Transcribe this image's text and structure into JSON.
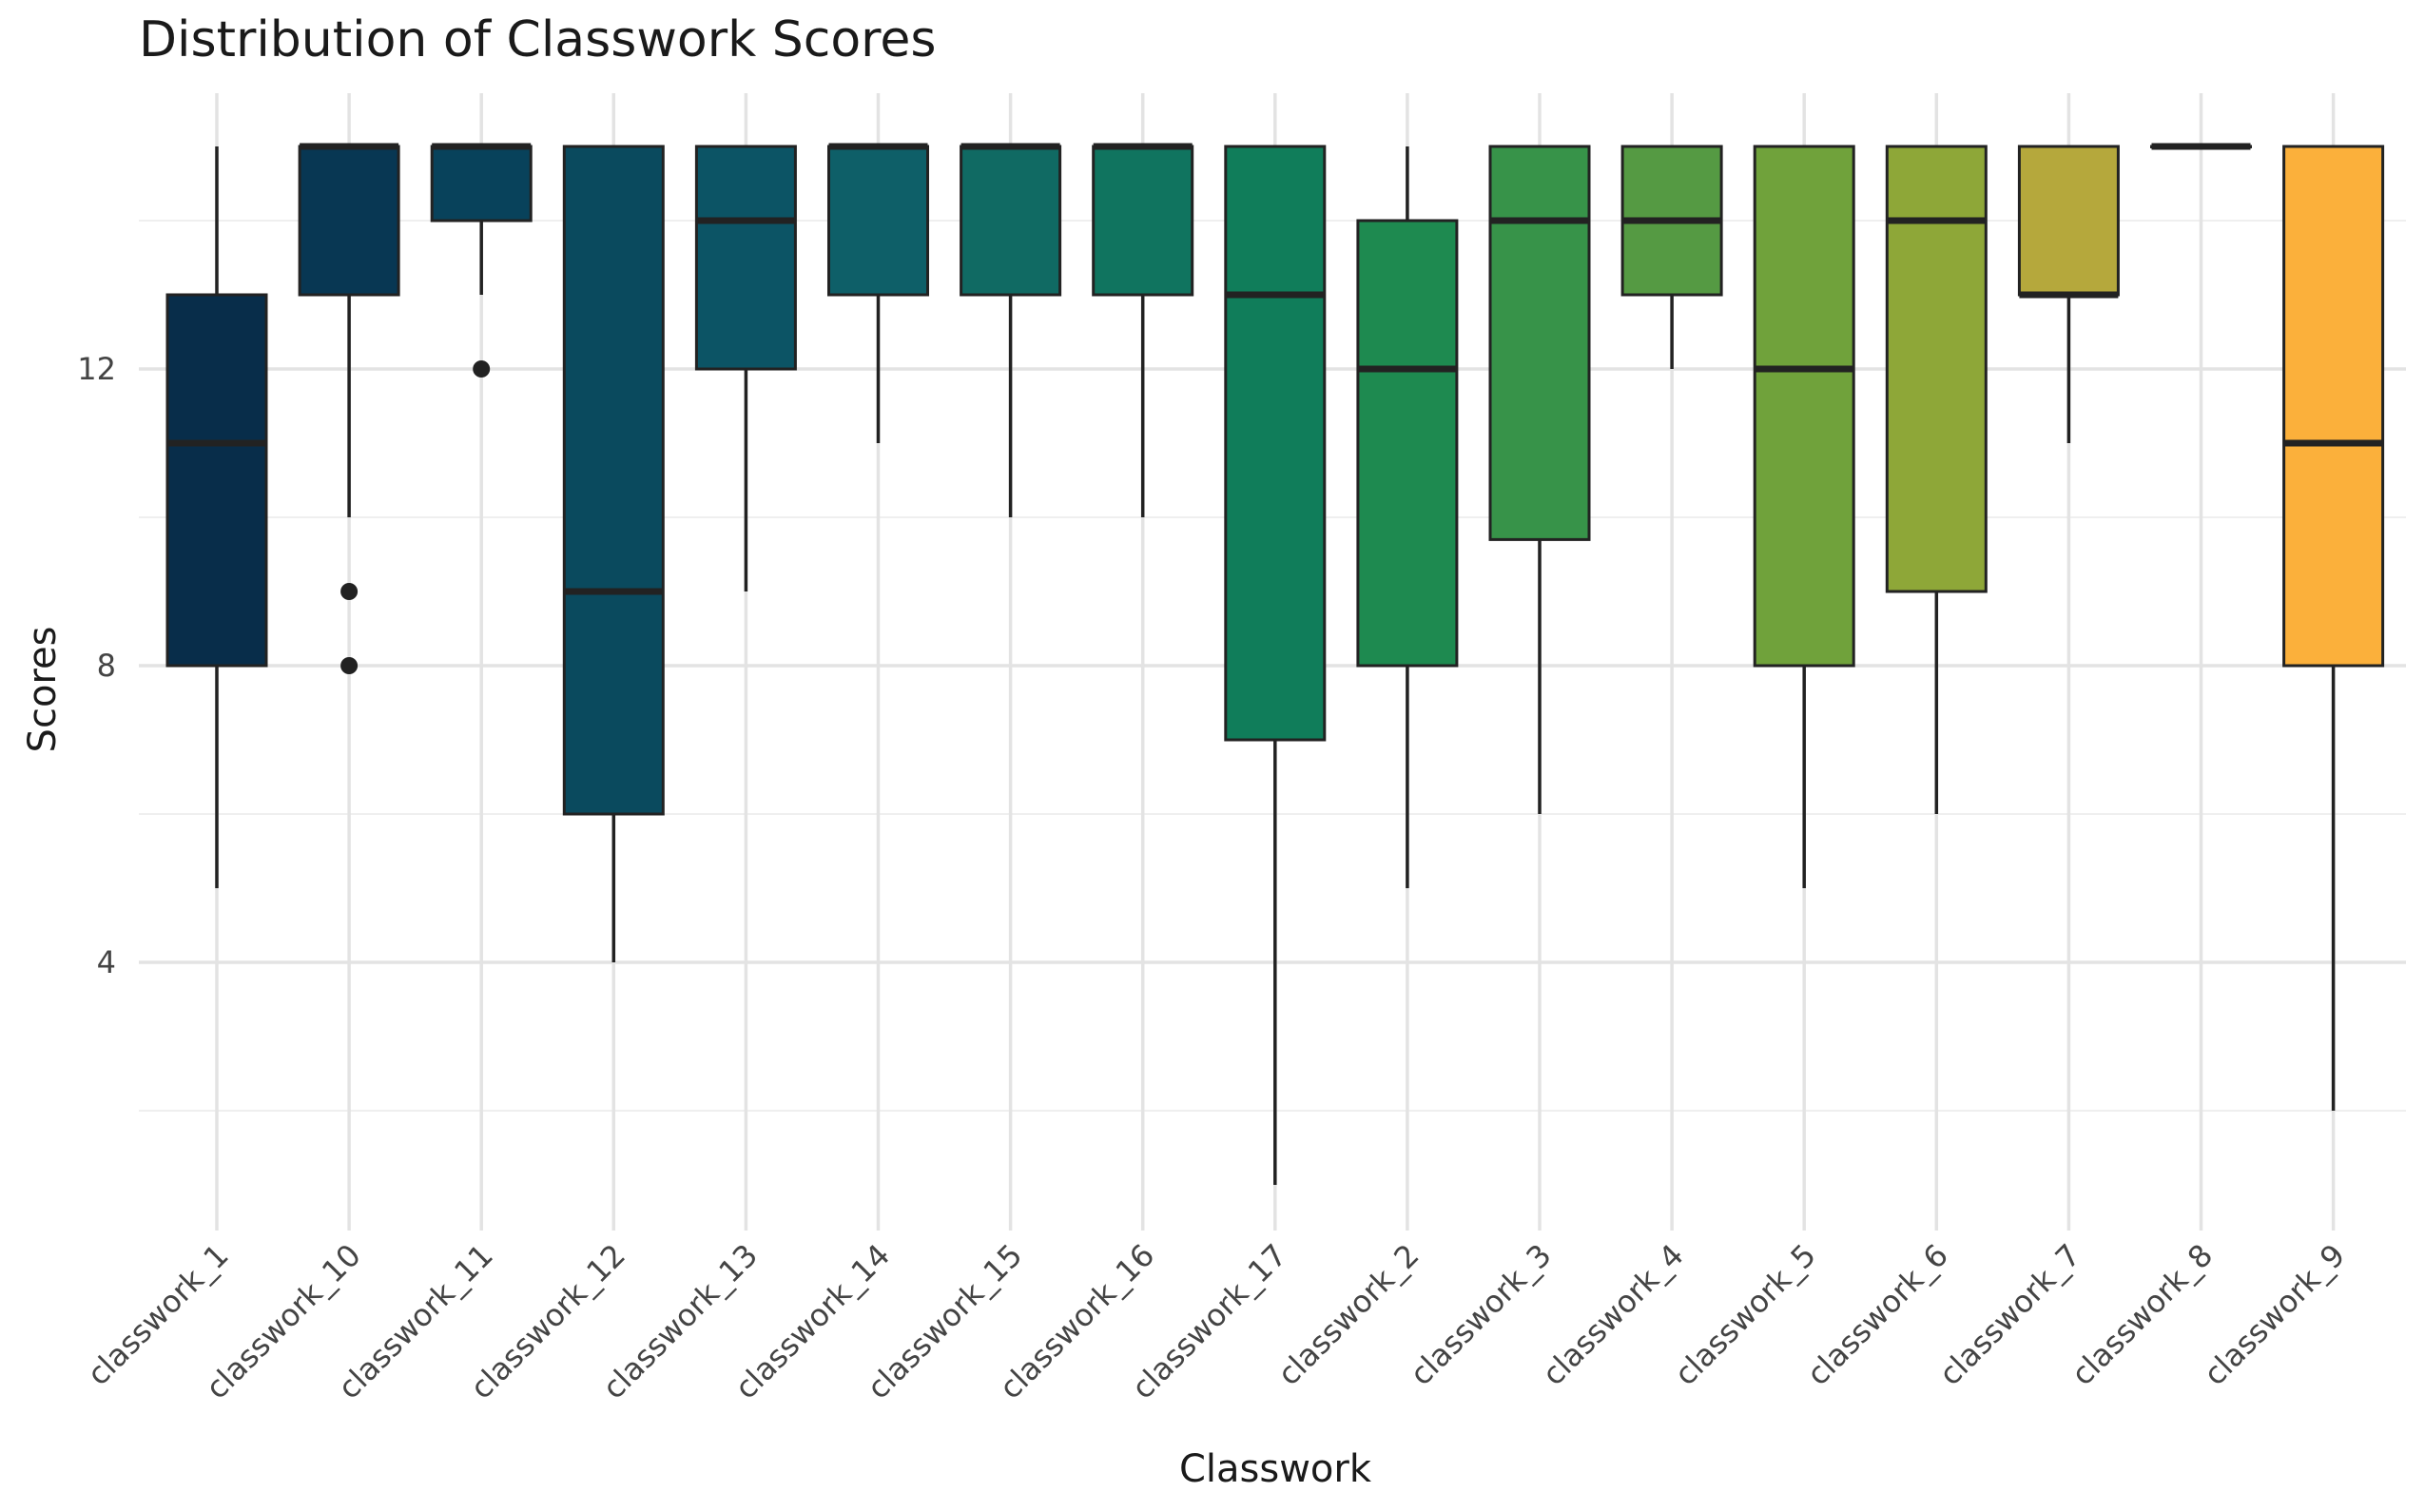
{
  "chart_data": {
    "type": "boxplot",
    "title": "Distribution of Classwork Scores",
    "xlabel": "Classwork",
    "ylabel": "Scores",
    "ylim": [
      0.5,
      15.8
    ],
    "y_ticks": [
      4,
      8,
      12
    ],
    "grid": true,
    "legend": "none",
    "categories": [
      "classwork_1",
      "classwork_10",
      "classwork_11",
      "classwork_12",
      "classwork_13",
      "classwork_14",
      "classwork_15",
      "classwork_16",
      "classwork_17",
      "classwork_2",
      "classwork_3",
      "classwork_4",
      "classwork_5",
      "classwork_6",
      "classwork_7",
      "classwork_8",
      "classwork_9"
    ],
    "boxes": [
      {
        "category": "classwork_1",
        "whisker_low": 5,
        "q1": 8,
        "median": 11,
        "q3": 13,
        "whisker_high": 15,
        "outliers": [],
        "color": "#082d4a"
      },
      {
        "category": "classwork_10",
        "whisker_low": 10,
        "q1": 13,
        "median": 15,
        "q3": 15,
        "whisker_high": 15,
        "outliers": [
          9,
          8
        ],
        "color": "#083753"
      },
      {
        "category": "classwork_11",
        "whisker_low": 13,
        "q1": 14,
        "median": 15,
        "q3": 15,
        "whisker_high": 15,
        "outliers": [
          12
        ],
        "color": "#08425b"
      },
      {
        "category": "classwork_12",
        "whisker_low": 4,
        "q1": 6,
        "median": 9,
        "q3": 15,
        "whisker_high": 15,
        "outliers": [],
        "color": "#0a4a5e"
      },
      {
        "category": "classwork_13",
        "whisker_low": 9,
        "q1": 12,
        "median": 14,
        "q3": 15,
        "whisker_high": 15,
        "outliers": [],
        "color": "#0c5465"
      },
      {
        "category": "classwork_14",
        "whisker_low": 11,
        "q1": 13,
        "median": 15,
        "q3": 15,
        "whisker_high": 15,
        "outliers": [],
        "color": "#0e5f68"
      },
      {
        "category": "classwork_15",
        "whisker_low": 10,
        "q1": 13,
        "median": 15,
        "q3": 15,
        "whisker_high": 15,
        "outliers": [],
        "color": "#106a63"
      },
      {
        "category": "classwork_16",
        "whisker_low": 10,
        "q1": 13,
        "median": 15,
        "q3": 15,
        "whisker_high": 15,
        "outliers": [],
        "color": "#10745f"
      },
      {
        "category": "classwork_17",
        "whisker_low": 1,
        "q1": 7,
        "median": 13,
        "q3": 15,
        "whisker_high": 15,
        "outliers": [],
        "color": "#107d5a"
      },
      {
        "category": "classwork_2",
        "whisker_low": 5,
        "q1": 8,
        "median": 12,
        "q3": 14,
        "whisker_high": 15,
        "outliers": [],
        "color": "#1e8a50"
      },
      {
        "category": "classwork_3",
        "whisker_low": 6,
        "q1": 9.7,
        "median": 14,
        "q3": 15,
        "whisker_high": 15,
        "outliers": [],
        "color": "#379349"
      },
      {
        "category": "classwork_4",
        "whisker_low": 12,
        "q1": 13,
        "median": 14,
        "q3": 15,
        "whisker_high": 15,
        "outliers": [],
        "color": "#559a43"
      },
      {
        "category": "classwork_5",
        "whisker_low": 5,
        "q1": 8,
        "median": 12,
        "q3": 15,
        "whisker_high": 15,
        "outliers": [],
        "color": "#70a23b"
      },
      {
        "category": "classwork_6",
        "whisker_low": 6,
        "q1": 9,
        "median": 14,
        "q3": 15,
        "whisker_high": 15,
        "outliers": [],
        "color": "#8ea738"
      },
      {
        "category": "classwork_7",
        "whisker_low": 11,
        "q1": 13,
        "median": 13,
        "q3": 15,
        "whisker_high": 15,
        "outliers": [],
        "color": "#b5a83c"
      },
      {
        "category": "classwork_8",
        "whisker_low": 15,
        "q1": 15,
        "median": 15,
        "q3": 15,
        "whisker_high": 15,
        "outliers": [],
        "color": "#d6ac3a"
      },
      {
        "category": "classwork_9",
        "whisker_low": 2,
        "q1": 8,
        "median": 11,
        "q3": 15,
        "whisker_high": 15,
        "outliers": [],
        "color": "#fbb03b"
      }
    ]
  }
}
